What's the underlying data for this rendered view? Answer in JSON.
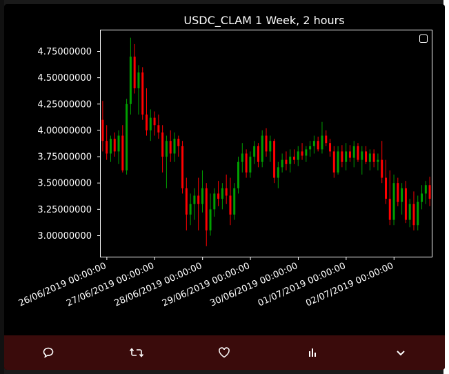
{
  "chart_data": {
    "type": "candlestick",
    "title": "USDC_CLAM  1 Week, 2 hours",
    "ylim": [
      2.8,
      4.95
    ],
    "y_ticks": [
      "3.00000000",
      "3.25000000",
      "3.50000000",
      "3.75000000",
      "4.00000000",
      "4.25000000",
      "4.50000000",
      "4.75000000"
    ],
    "y_tick_values": [
      3.0,
      3.25,
      3.5,
      3.75,
      4.0,
      4.25,
      4.5,
      4.75
    ],
    "x_ticks": [
      "26/06/2019  00:00:00",
      "27/06/2019  00:00:00",
      "28/06/2019  00:00:00",
      "29/06/2019  00:00:00",
      "30/06/2019  00:00:00",
      "01/07/2019  00:00:00",
      "02/07/2019  00:00:00"
    ],
    "legend": "top-right (empty)",
    "colors": {
      "up": "#00a000",
      "down": "#ff0000",
      "background": "#000000",
      "axes": "#ffffff"
    },
    "candles": [
      [
        4.1,
        4.28,
        3.8,
        3.9
      ],
      [
        3.9,
        4.05,
        3.72,
        3.78
      ],
      [
        3.78,
        3.95,
        3.7,
        3.92
      ],
      [
        3.92,
        3.98,
        3.75,
        3.8
      ],
      [
        3.8,
        4.0,
        3.68,
        3.95
      ],
      [
        3.95,
        4.05,
        3.6,
        3.62
      ],
      [
        3.62,
        4.3,
        3.58,
        4.25
      ],
      [
        4.25,
        4.88,
        4.15,
        4.7
      ],
      [
        4.7,
        4.82,
        4.35,
        4.4
      ],
      [
        4.4,
        4.62,
        4.15,
        4.55
      ],
      [
        4.55,
        4.6,
        4.1,
        4.15
      ],
      [
        4.15,
        4.4,
        3.95,
        4.0
      ],
      [
        4.0,
        4.2,
        3.9,
        4.12
      ],
      [
        4.12,
        4.18,
        3.95,
        4.05
      ],
      [
        4.05,
        4.15,
        3.92,
        3.98
      ],
      [
        3.98,
        4.05,
        3.6,
        3.75
      ],
      [
        3.75,
        3.95,
        3.45,
        3.9
      ],
      [
        3.9,
        4.0,
        3.7,
        3.78
      ],
      [
        3.78,
        3.98,
        3.7,
        3.92
      ],
      [
        3.92,
        3.95,
        3.75,
        3.85
      ],
      [
        3.85,
        3.9,
        3.4,
        3.45
      ],
      [
        3.45,
        3.55,
        3.05,
        3.2
      ],
      [
        3.2,
        3.4,
        3.1,
        3.3
      ],
      [
        3.3,
        3.45,
        3.15,
        3.38
      ],
      [
        3.38,
        3.55,
        3.05,
        3.3
      ],
      [
        3.3,
        3.62,
        3.22,
        3.45
      ],
      [
        3.45,
        3.5,
        2.9,
        3.05
      ],
      [
        3.05,
        3.4,
        3.0,
        3.25
      ],
      [
        3.25,
        3.45,
        3.18,
        3.4
      ],
      [
        3.4,
        3.52,
        3.28,
        3.35
      ],
      [
        3.35,
        3.5,
        3.25,
        3.45
      ],
      [
        3.45,
        3.58,
        3.3,
        3.38
      ],
      [
        3.38,
        3.55,
        3.1,
        3.2
      ],
      [
        3.2,
        3.5,
        3.15,
        3.45
      ],
      [
        3.45,
        3.75,
        3.4,
        3.7
      ],
      [
        3.7,
        3.88,
        3.6,
        3.78
      ],
      [
        3.78,
        3.82,
        3.55,
        3.6
      ],
      [
        3.6,
        3.8,
        3.55,
        3.75
      ],
      [
        3.75,
        3.9,
        3.68,
        3.85
      ],
      [
        3.85,
        3.88,
        3.65,
        3.7
      ],
      [
        3.7,
        4.0,
        3.65,
        3.95
      ],
      [
        3.95,
        4.02,
        3.75,
        3.8
      ],
      [
        3.8,
        3.95,
        3.7,
        3.9
      ],
      [
        3.9,
        3.92,
        3.5,
        3.55
      ],
      [
        3.55,
        3.7,
        3.45,
        3.65
      ],
      [
        3.65,
        3.78,
        3.6,
        3.72
      ],
      [
        3.72,
        3.8,
        3.62,
        3.68
      ],
      [
        3.68,
        3.82,
        3.6,
        3.75
      ],
      [
        3.75,
        3.82,
        3.68,
        3.72
      ],
      [
        3.72,
        3.85,
        3.66,
        3.8
      ],
      [
        3.8,
        3.88,
        3.72,
        3.76
      ],
      [
        3.76,
        3.85,
        3.7,
        3.82
      ],
      [
        3.82,
        3.9,
        3.75,
        3.85
      ],
      [
        3.85,
        3.95,
        3.78,
        3.9
      ],
      [
        3.9,
        3.94,
        3.8,
        3.82
      ],
      [
        3.82,
        4.08,
        3.78,
        3.95
      ],
      [
        3.95,
        4.0,
        3.85,
        3.88
      ],
      [
        3.88,
        3.92,
        3.75,
        3.8
      ],
      [
        3.8,
        3.85,
        3.55,
        3.6
      ],
      [
        3.6,
        3.85,
        3.58,
        3.8
      ],
      [
        3.8,
        3.86,
        3.65,
        3.7
      ],
      [
        3.7,
        3.88,
        3.62,
        3.8
      ],
      [
        3.8,
        3.86,
        3.7,
        3.74
      ],
      [
        3.74,
        3.9,
        3.65,
        3.85
      ],
      [
        3.85,
        3.88,
        3.7,
        3.72
      ],
      [
        3.72,
        3.85,
        3.58,
        3.8
      ],
      [
        3.8,
        3.85,
        3.68,
        3.7
      ],
      [
        3.7,
        3.82,
        3.62,
        3.78
      ],
      [
        3.78,
        3.82,
        3.65,
        3.7
      ],
      [
        3.7,
        3.78,
        3.62,
        3.72
      ],
      [
        3.72,
        3.9,
        3.5,
        3.55
      ],
      [
        3.55,
        3.72,
        3.3,
        3.35
      ],
      [
        3.35,
        3.62,
        3.1,
        3.15
      ],
      [
        3.15,
        3.58,
        3.1,
        3.5
      ],
      [
        3.5,
        3.55,
        3.28,
        3.32
      ],
      [
        3.32,
        3.5,
        3.2,
        3.45
      ],
      [
        3.45,
        3.52,
        3.12,
        3.15
      ],
      [
        3.15,
        3.35,
        3.08,
        3.3
      ],
      [
        3.3,
        3.42,
        3.05,
        3.1
      ],
      [
        3.1,
        3.38,
        3.05,
        3.32
      ],
      [
        3.32,
        3.48,
        3.25,
        3.4
      ],
      [
        3.4,
        3.52,
        3.3,
        3.48
      ],
      [
        3.48,
        3.56,
        3.28,
        3.35
      ]
    ]
  },
  "actions": {
    "reply": "reply",
    "retweet": "retweet",
    "like": "like",
    "stats": "stats",
    "more": "more"
  }
}
